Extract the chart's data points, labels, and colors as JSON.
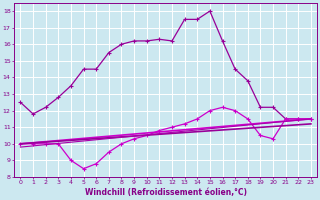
{
  "xlabel": "Windchill (Refroidissement éolien,°C)",
  "background_color": "#cce8f0",
  "grid_color": "#ffffff",
  "xlim": [
    -0.5,
    23.5
  ],
  "ylim": [
    8,
    18.5
  ],
  "xticks": [
    0,
    1,
    2,
    3,
    4,
    5,
    6,
    7,
    8,
    9,
    10,
    11,
    12,
    13,
    14,
    15,
    16,
    17,
    18,
    19,
    20,
    21,
    22,
    23
  ],
  "yticks": [
    8,
    9,
    10,
    11,
    12,
    13,
    14,
    15,
    16,
    17,
    18
  ],
  "lines": [
    {
      "x": [
        0,
        1,
        2,
        3,
        4,
        5,
        6,
        7,
        8,
        9,
        10,
        11,
        12,
        13,
        14,
        15,
        16,
        17,
        18,
        19,
        20,
        21,
        22,
        23
      ],
      "y": [
        12.5,
        11.8,
        12.2,
        12.8,
        13.5,
        14.5,
        14.5,
        15.5,
        16.0,
        16.2,
        16.2,
        16.3,
        16.2,
        17.5,
        17.5,
        18.0,
        16.2,
        14.5,
        13.8,
        12.2,
        12.2,
        11.5,
        11.5,
        11.5
      ],
      "color": "#990099",
      "linewidth": 0.9,
      "marker": "+",
      "markersize": 3,
      "linestyle": "-"
    },
    {
      "x": [
        0,
        1,
        2,
        3,
        4,
        5,
        6,
        7,
        8,
        9,
        10,
        11,
        12,
        13,
        14,
        15,
        16,
        17,
        18,
        19,
        20,
        21,
        22,
        23
      ],
      "y": [
        10.0,
        10.0,
        10.0,
        10.0,
        9.0,
        8.5,
        8.8,
        9.5,
        10.0,
        10.3,
        10.5,
        10.8,
        11.0,
        11.2,
        11.5,
        12.0,
        12.2,
        12.0,
        11.5,
        10.5,
        10.3,
        11.5,
        11.5,
        11.5
      ],
      "color": "#cc00cc",
      "linewidth": 0.9,
      "marker": "+",
      "markersize": 3,
      "linestyle": "-"
    },
    {
      "x": [
        0,
        23
      ],
      "y": [
        10.0,
        11.5
      ],
      "color": "#cc00cc",
      "linewidth": 1.2,
      "linestyle": "-"
    },
    {
      "x": [
        0,
        23
      ],
      "y": [
        10.0,
        11.2
      ],
      "color": "#990099",
      "linewidth": 1.2,
      "linestyle": "-"
    },
    {
      "x": [
        0,
        23
      ],
      "y": [
        9.8,
        11.5
      ],
      "color": "#aa00aa",
      "linewidth": 0.8,
      "linestyle": "-"
    }
  ],
  "tick_color": "#880088",
  "tick_fontsize": 4.5,
  "label_fontsize": 5.5,
  "label_color": "#880088",
  "spine_color": "#880088"
}
